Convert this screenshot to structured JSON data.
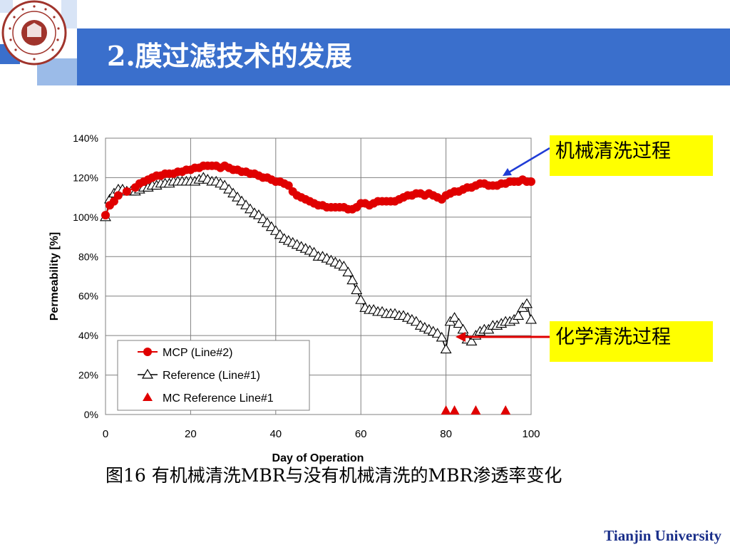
{
  "slide": {
    "title": "2.膜过滤技术的发展",
    "caption": "图16 有机械清洗MBR与没有机械清洗的MBR渗透率变化",
    "footer": "Tianjin University",
    "logo_text": "TIANJIN UNIVERSITY (PEIYANG UNIVERSITY) 1895 天津大学",
    "colors": {
      "title_bar": "#3a6fcc",
      "callout_bg": "#ffff00",
      "footer": "#1a2f8a"
    }
  },
  "callouts": {
    "mechanical": "机械清洗过程",
    "chemical": "化学清洗过程"
  },
  "chart_data": {
    "type": "line",
    "xlabel": "Day of Operation",
    "ylabel": "Permeability [%]",
    "xlim": [
      0,
      100
    ],
    "ylim": [
      0,
      140
    ],
    "xticks": [
      0,
      20,
      40,
      60,
      80,
      100
    ],
    "yticks": [
      0,
      20,
      40,
      60,
      80,
      100,
      120,
      140
    ],
    "ytick_labels": [
      "0%",
      "20%",
      "40%",
      "60%",
      "80%",
      "100%",
      "120%",
      "140%"
    ],
    "grid": true,
    "legend_position": "bottom-left",
    "series": [
      {
        "name": "MCP (Line#2)",
        "color": "#e00000",
        "marker": "circle-filled",
        "x": [
          0,
          1,
          2,
          3,
          5,
          7,
          8,
          9,
          10,
          11,
          12,
          13,
          14,
          15,
          16,
          17,
          18,
          19,
          20,
          21,
          22,
          23,
          24,
          25,
          26,
          27,
          28,
          29,
          30,
          31,
          32,
          33,
          34,
          35,
          36,
          37,
          38,
          39,
          40,
          41,
          42,
          43,
          44,
          45,
          46,
          47,
          48,
          49,
          50,
          51,
          52,
          53,
          54,
          55,
          56,
          57,
          58,
          59,
          60,
          61,
          62,
          63,
          64,
          65,
          66,
          67,
          68,
          69,
          70,
          71,
          72,
          73,
          74,
          75,
          76,
          77,
          78,
          79,
          80,
          81,
          82,
          83,
          84,
          85,
          86,
          87,
          88,
          89,
          90,
          91,
          92,
          93,
          94,
          95,
          96,
          97,
          98,
          99,
          100
        ],
        "y": [
          101,
          106,
          108,
          111,
          113,
          115,
          117,
          118,
          119,
          120,
          121,
          121,
          122,
          122,
          122,
          123,
          123,
          124,
          124,
          125,
          125,
          126,
          126,
          126,
          126,
          125,
          126,
          125,
          124,
          124,
          123,
          123,
          122,
          122,
          121,
          120,
          120,
          119,
          118,
          118,
          117,
          116,
          113,
          111,
          110,
          109,
          108,
          107,
          106,
          106,
          105,
          105,
          105,
          105,
          105,
          104,
          104,
          105,
          107,
          107,
          106,
          107,
          108,
          108,
          108,
          108,
          108,
          109,
          110,
          111,
          111,
          112,
          112,
          111,
          112,
          111,
          110,
          109,
          111,
          112,
          113,
          113,
          114,
          115,
          115,
          116,
          117,
          117,
          116,
          116,
          116,
          117,
          117,
          118,
          118,
          118,
          119,
          118,
          118
        ]
      },
      {
        "name": "Reference (Line#1)",
        "color": "#000000",
        "marker": "triangle-open",
        "x": [
          0,
          1,
          2,
          3,
          4,
          5,
          6,
          7,
          8,
          9,
          10,
          11,
          12,
          13,
          14,
          15,
          16,
          17,
          18,
          19,
          20,
          21,
          22,
          23,
          24,
          25,
          26,
          27,
          28,
          29,
          30,
          31,
          32,
          33,
          34,
          35,
          36,
          37,
          38,
          39,
          40,
          41,
          42,
          43,
          44,
          45,
          46,
          47,
          48,
          49,
          50,
          51,
          52,
          53,
          54,
          55,
          56,
          57,
          58,
          59,
          60,
          61,
          62,
          63,
          64,
          65,
          66,
          67,
          68,
          69,
          70,
          71,
          72,
          73,
          74,
          75,
          76,
          77,
          78,
          79,
          80,
          81,
          82,
          83,
          84,
          85,
          86,
          87,
          88,
          89,
          90,
          91,
          92,
          93,
          94,
          95,
          96,
          97,
          98,
          99,
          100
        ],
        "y": [
          100,
          109,
          112,
          114,
          114,
          113,
          113,
          113,
          114,
          115,
          115,
          116,
          116,
          117,
          117,
          117,
          118,
          118,
          118,
          118,
          118,
          118,
          119,
          120,
          119,
          118,
          118,
          117,
          116,
          114,
          112,
          110,
          108,
          106,
          104,
          102,
          101,
          99,
          97,
          95,
          93,
          91,
          89,
          88,
          87,
          86,
          85,
          84,
          83,
          82,
          80,
          80,
          79,
          78,
          77,
          76,
          75,
          72,
          68,
          63,
          58,
          54,
          53,
          53,
          52,
          52,
          51,
          51,
          51,
          50,
          50,
          49,
          48,
          47,
          45,
          44,
          43,
          42,
          41,
          39,
          33,
          47,
          49,
          46,
          43,
          38,
          37,
          40,
          42,
          43,
          43,
          45,
          45,
          46,
          47,
          47,
          48,
          50,
          54,
          56,
          48
        ]
      },
      {
        "name": "MC Reference Line#1",
        "color": "#e00000",
        "marker": "triangle-filled",
        "x": [
          80,
          82,
          87,
          94
        ],
        "y": [
          0,
          0,
          0,
          0
        ]
      }
    ]
  }
}
